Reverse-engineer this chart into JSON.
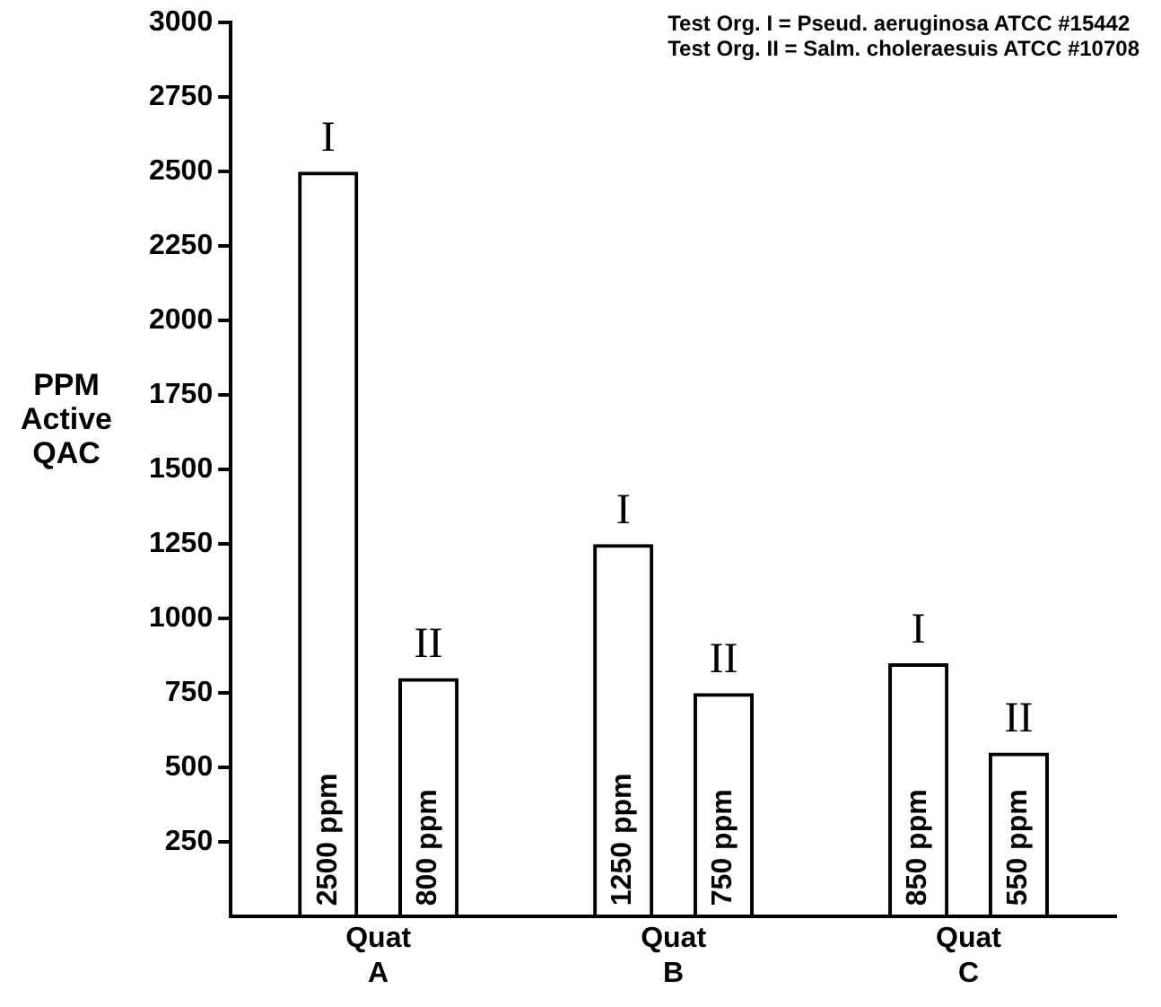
{
  "chart_data": {
    "type": "bar",
    "ylabel": "PPM\nActive\nQAC",
    "categories": [
      "Quat\nA",
      "Quat\nB",
      "Quat\nC"
    ],
    "series": [
      {
        "name": "I",
        "color": "#000000",
        "values": [
          2500,
          1250,
          850
        ],
        "value_labels": [
          "2500 ppm",
          "1250 ppm",
          "850 ppm"
        ]
      },
      {
        "name": "II",
        "color": "#000000",
        "values": [
          800,
          750,
          550
        ],
        "value_labels": [
          "800 ppm",
          "750 ppm",
          "550 ppm"
        ]
      }
    ],
    "ylim": [
      0,
      3000
    ],
    "yticks": [
      250,
      500,
      750,
      1000,
      1250,
      1500,
      1750,
      2000,
      2250,
      2500,
      2750,
      3000
    ],
    "grid": false,
    "legend": false,
    "annotations": [
      "Test Org. I = Pseud. aeruginosa ATCC #15442",
      "Test Org. II = Salm. choleraesuis ATCC #10708"
    ]
  }
}
